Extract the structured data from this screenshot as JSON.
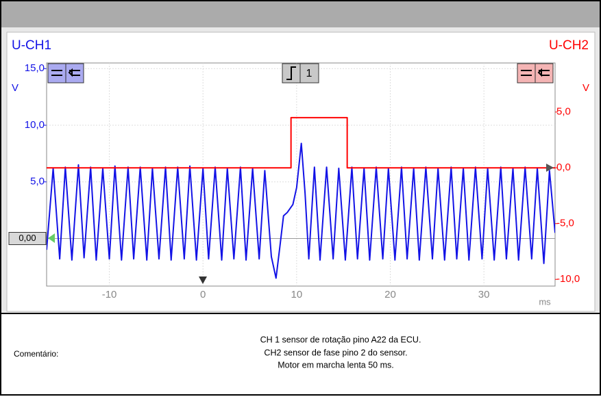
{
  "chart_data": {
    "type": "line",
    "xlabel": "ms",
    "ylabel": "V",
    "y2label": "V",
    "xlim": [
      -16.7,
      37.6
    ],
    "ylim": [
      -4.2,
      15.5
    ],
    "y2lim": [
      -10.6,
      9.4
    ],
    "xticks": [
      -10,
      0,
      10,
      20,
      30
    ],
    "yticks": [
      {
        "value": 0,
        "label": "0,00"
      },
      {
        "value": 5,
        "label": "5,0"
      },
      {
        "value": 10,
        "label": "10,0"
      },
      {
        "value": 15,
        "label": "15,0"
      }
    ],
    "y2ticks": [
      {
        "value": 5,
        "label": "5,0"
      },
      {
        "value": 0,
        "label": "0,0"
      },
      {
        "value": -5,
        "label": "-5,0"
      },
      {
        "value": -10,
        "label": "-10,0"
      }
    ],
    "trigger_label": "1",
    "grid": true,
    "series": [
      {
        "name": "U-CH1",
        "color": "#1212e6",
        "x": [
          -16.7,
          -16.0,
          -15.3,
          -14.7,
          -14.0,
          -13.3,
          -12.7,
          -12.0,
          -11.4,
          -10.7,
          -10.0,
          -9.4,
          -8.7,
          -8.0,
          -7.4,
          -6.7,
          -6.0,
          -5.4,
          -4.7,
          -4.0,
          -3.4,
          -2.7,
          -2.0,
          -1.4,
          -0.7,
          0.0,
          0.6,
          1.3,
          2.0,
          2.6,
          3.3,
          4.0,
          4.6,
          5.3,
          6.0,
          6.6,
          7.3,
          7.8,
          8.2,
          8.6,
          9.0,
          9.6,
          10.0,
          10.5,
          10.9,
          11.3,
          11.9,
          12.5,
          13.2,
          13.9,
          14.5,
          15.2,
          15.9,
          16.5,
          17.2,
          17.8,
          18.5,
          19.2,
          19.8,
          20.5,
          21.2,
          21.8,
          22.5,
          23.1,
          23.8,
          24.5,
          25.1,
          25.8,
          26.5,
          27.1,
          27.8,
          28.4,
          29.1,
          29.8,
          30.4,
          31.1,
          31.8,
          32.4,
          33.1,
          33.7,
          34.4,
          35.1,
          35.7,
          36.4,
          37.0,
          37.6
        ],
        "values": [
          -1.0,
          6.2,
          -1.8,
          6.3,
          -1.9,
          6.5,
          -1.7,
          6.3,
          -1.9,
          6.2,
          -1.8,
          6.4,
          -1.9,
          6.3,
          -1.8,
          6.3,
          -1.9,
          6.2,
          -1.8,
          6.3,
          -1.9,
          6.3,
          -1.8,
          6.4,
          -1.9,
          6.2,
          -1.8,
          6.3,
          -1.9,
          6.2,
          -1.8,
          6.3,
          -1.9,
          6.2,
          -1.8,
          6.0,
          -1.6,
          -3.5,
          -0.8,
          2.0,
          2.3,
          3.0,
          4.5,
          8.4,
          4.0,
          -1.8,
          6.3,
          -1.9,
          6.3,
          -1.8,
          6.2,
          -1.9,
          6.3,
          -1.8,
          6.2,
          -1.9,
          6.3,
          -1.8,
          6.2,
          -1.9,
          6.3,
          -1.8,
          6.2,
          -1.9,
          6.3,
          -1.8,
          6.2,
          -1.9,
          6.3,
          -1.8,
          6.2,
          -1.9,
          6.3,
          -1.8,
          6.2,
          -1.9,
          6.3,
          -1.8,
          6.2,
          -1.9,
          6.3,
          -1.8,
          6.2,
          -2.2,
          6.0,
          0.5
        ]
      },
      {
        "name": "U-CH2",
        "color": "#ff0000",
        "axis": "y2",
        "x": [
          -16.7,
          9.4,
          9.4,
          15.4,
          15.4,
          37.6
        ],
        "values": [
          0,
          0,
          4.5,
          4.5,
          0,
          0
        ]
      }
    ]
  },
  "comment": {
    "label": "Comentário:",
    "lines": [
      "CH 1 sensor de rotação pino A22 da ECU.",
      "CH2 sensor de fase pino 2 do sensor.",
      "Motor em marcha lenta 50 ms."
    ]
  }
}
